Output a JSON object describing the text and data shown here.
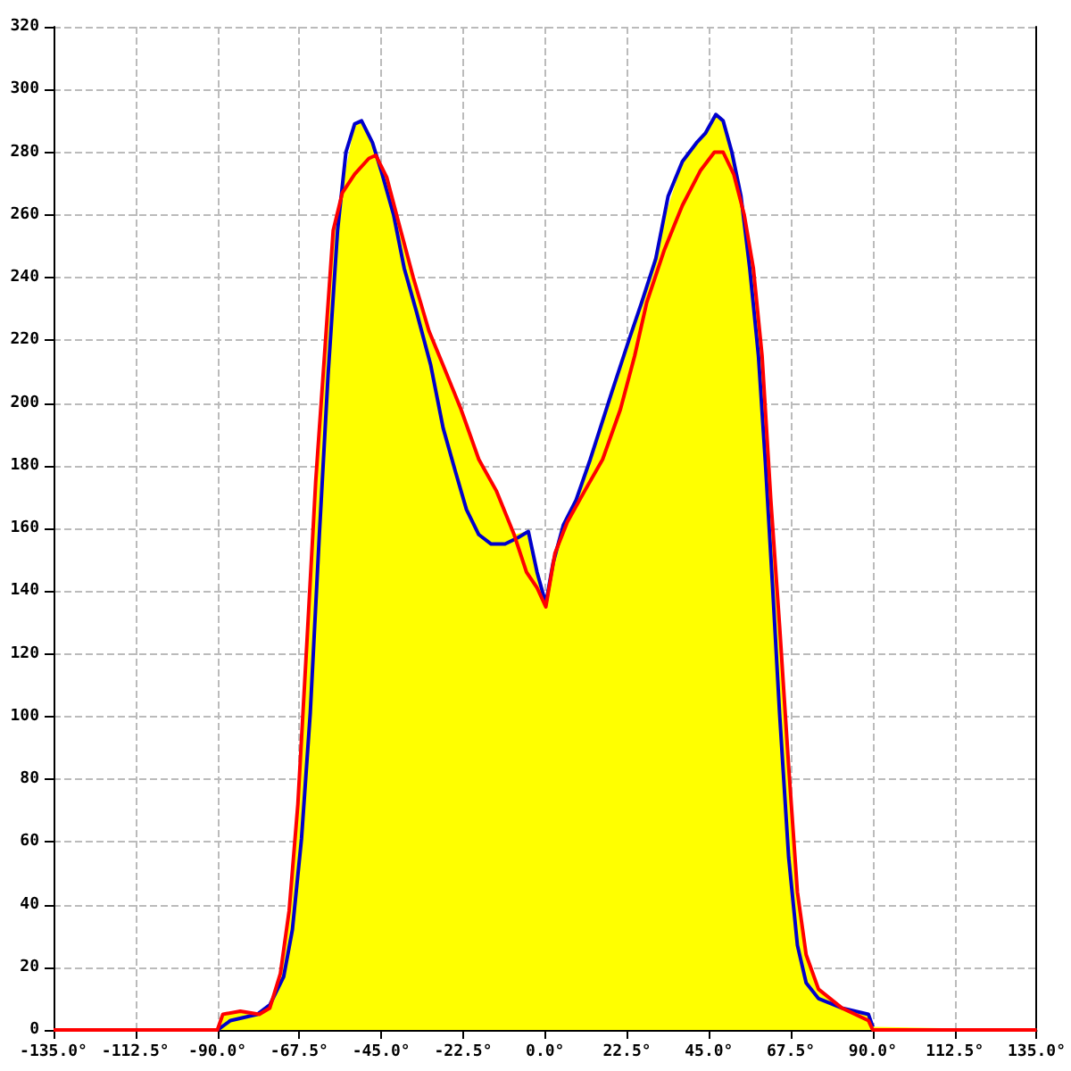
{
  "chart_data": {
    "type": "line",
    "xlim": [
      -135,
      135
    ],
    "ylim": [
      0,
      320
    ],
    "xticks": [
      {
        "value": -135,
        "label": "-135.0°"
      },
      {
        "value": -112.5,
        "label": "-112.5°"
      },
      {
        "value": -90,
        "label": "-90.0°"
      },
      {
        "value": -67.5,
        "label": "-67.5°"
      },
      {
        "value": -45,
        "label": "-45.0°"
      },
      {
        "value": -22.5,
        "label": "-22.5°"
      },
      {
        "value": 0,
        "label": "0.0°"
      },
      {
        "value": 22.5,
        "label": "22.5°"
      },
      {
        "value": 45,
        "label": "45.0°"
      },
      {
        "value": 67.5,
        "label": "67.5°"
      },
      {
        "value": 90,
        "label": "90.0°"
      },
      {
        "value": 112.5,
        "label": "112.5°"
      },
      {
        "value": 135,
        "label": "135.0°"
      }
    ],
    "yticks": [
      0,
      20,
      40,
      60,
      80,
      100,
      120,
      140,
      160,
      180,
      200,
      220,
      240,
      260,
      280,
      300,
      320
    ],
    "grid": true,
    "marker": "none",
    "line_style": "solid",
    "series": [
      {
        "type": "area",
        "color": "#ffff00",
        "x": [
          -135,
          -90,
          -88.5,
          -83.7,
          -78.5,
          -75.6,
          -72.7,
          -70.3,
          -67.9,
          -65.4,
          -63,
          -60.6,
          -58.2,
          -55.7,
          -52.3,
          -50.4,
          -48.4,
          -46.5,
          -43.5,
          -40.1,
          -36.2,
          -31.9,
          -28,
          -23.1,
          -18.2,
          -13.4,
          -8.5,
          -5.1,
          -2.2,
          0.2,
          2.7,
          6.1,
          10.9,
          15.8,
          20.7,
          24.6,
          27.9,
          32.8,
          37.7,
          42.6,
          46.9,
          48.9,
          51.8,
          54.7,
          57.2,
          59.6,
          62,
          64.4,
          66.9,
          69.3,
          71.7,
          75.1,
          81.5,
          88.8,
          90,
          135
        ],
        "values": [
          0,
          0,
          5,
          6,
          5,
          8,
          18,
          38,
          72,
          124,
          175,
          215,
          255,
          269,
          289,
          290,
          285,
          280,
          272,
          257,
          240,
          223,
          212,
          198,
          182,
          172,
          158,
          159,
          146,
          136,
          152,
          164,
          176,
          193,
          212,
          225,
          237,
          259,
          277,
          284,
          292,
          290,
          277,
          260,
          243,
          215,
          169,
          129,
          84,
          44,
          24,
          13,
          7,
          5,
          1,
          0
        ]
      },
      {
        "color": "#0000cc",
        "x": [
          -90,
          -86.4,
          -79,
          -75.6,
          -71.8,
          -69.4,
          -66.9,
          -64.5,
          -62,
          -59.6,
          -57,
          -54.7,
          -52.3,
          -50.4,
          -47.4,
          -45,
          -41.6,
          -38.7,
          -35.3,
          -31.4,
          -28,
          -24.6,
          -21.6,
          -18.2,
          -14.8,
          -11,
          -7.5,
          -4.6,
          -2.2,
          0.2,
          2.2,
          5,
          8.5,
          12.4,
          18.2,
          23,
          26.5,
          30.4,
          33.8,
          37.7,
          41.6,
          44,
          46.9,
          48.9,
          51.3,
          53.8,
          56.2,
          58.6,
          60.5,
          62.5,
          64.4,
          66.9,
          69.3,
          71.7,
          75.1,
          81.5,
          88.8,
          90
        ],
        "values": [
          0,
          3,
          5,
          8,
          17,
          32,
          61,
          101,
          158,
          209,
          255,
          280,
          289,
          290,
          283,
          274,
          260,
          243,
          229,
          212,
          192,
          178,
          166,
          158,
          155,
          155,
          157,
          159,
          146,
          136,
          149,
          161,
          169,
          182,
          203,
          220,
          232,
          246,
          266,
          277,
          283,
          286,
          292,
          290,
          280,
          266,
          243,
          215,
          181,
          141,
          101,
          55,
          27,
          15,
          10,
          7,
          5,
          1
        ]
      },
      {
        "color": "#ff0000",
        "x": [
          -135,
          -90,
          -88.5,
          -83.7,
          -78.5,
          -75.6,
          -72.7,
          -70.3,
          -67.9,
          -65.4,
          -63,
          -60.6,
          -58.2,
          -55.7,
          -52.3,
          -48.4,
          -46.5,
          -43.5,
          -40.1,
          -36.2,
          -31.9,
          -28,
          -23.1,
          -18.2,
          -13.4,
          -8.5,
          -5.1,
          -2.2,
          0.2,
          2.7,
          6.1,
          10.9,
          15.8,
          20.7,
          24.6,
          27.9,
          32.8,
          37.7,
          42.6,
          46.5,
          48.9,
          51.8,
          54.7,
          57.2,
          59.6,
          62,
          64.4,
          66.9,
          69.3,
          71.7,
          75.1,
          81.5,
          88.8,
          90,
          135
        ],
        "values": [
          0,
          0,
          5,
          6,
          5,
          7,
          18,
          38,
          72,
          124,
          175,
          215,
          255,
          267,
          273,
          278,
          279,
          272,
          257,
          240,
          223,
          212,
          198,
          182,
          172,
          158,
          146,
          141,
          135,
          152,
          162,
          172,
          182,
          198,
          215,
          232,
          249,
          263,
          274,
          280,
          280,
          273,
          260,
          243,
          215,
          169,
          129,
          84,
          44,
          24,
          13,
          7,
          3,
          0,
          0
        ]
      }
    ]
  }
}
